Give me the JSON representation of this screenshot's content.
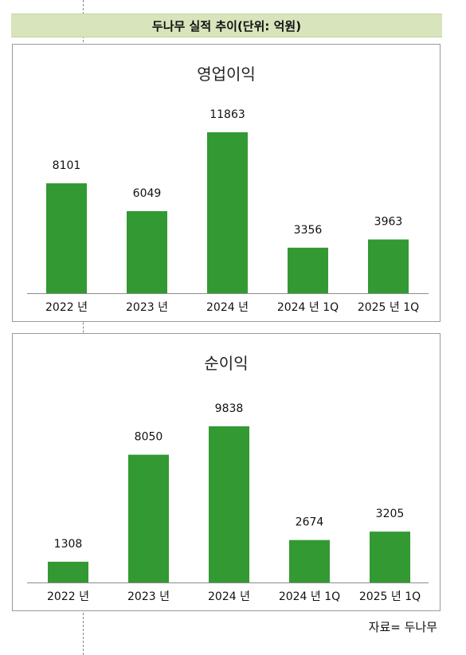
{
  "header": {
    "title": "두나무 실적 추이(단위: 억원)"
  },
  "source": "자료= 두나무",
  "colors": {
    "bar": "#339933",
    "band": "#d8e4bc"
  },
  "chart_data": [
    {
      "type": "bar",
      "title": "영업이익",
      "categories": [
        "2022 년",
        "2023 년",
        "2024 년",
        "2024 년 1Q",
        "2025 년 1Q"
      ],
      "values": [
        8101,
        6049,
        11863,
        3356,
        3963
      ],
      "ylim": [
        0,
        13000
      ],
      "grid": false,
      "legend": "none"
    },
    {
      "type": "bar",
      "title": "순이익",
      "categories": [
        "2022 년",
        "2023 년",
        "2024 년",
        "2024 년 1Q",
        "2025 년 1Q"
      ],
      "values": [
        1308,
        8050,
        9838,
        2674,
        3205
      ],
      "ylim": [
        0,
        11000
      ],
      "grid": false,
      "legend": "none"
    }
  ]
}
